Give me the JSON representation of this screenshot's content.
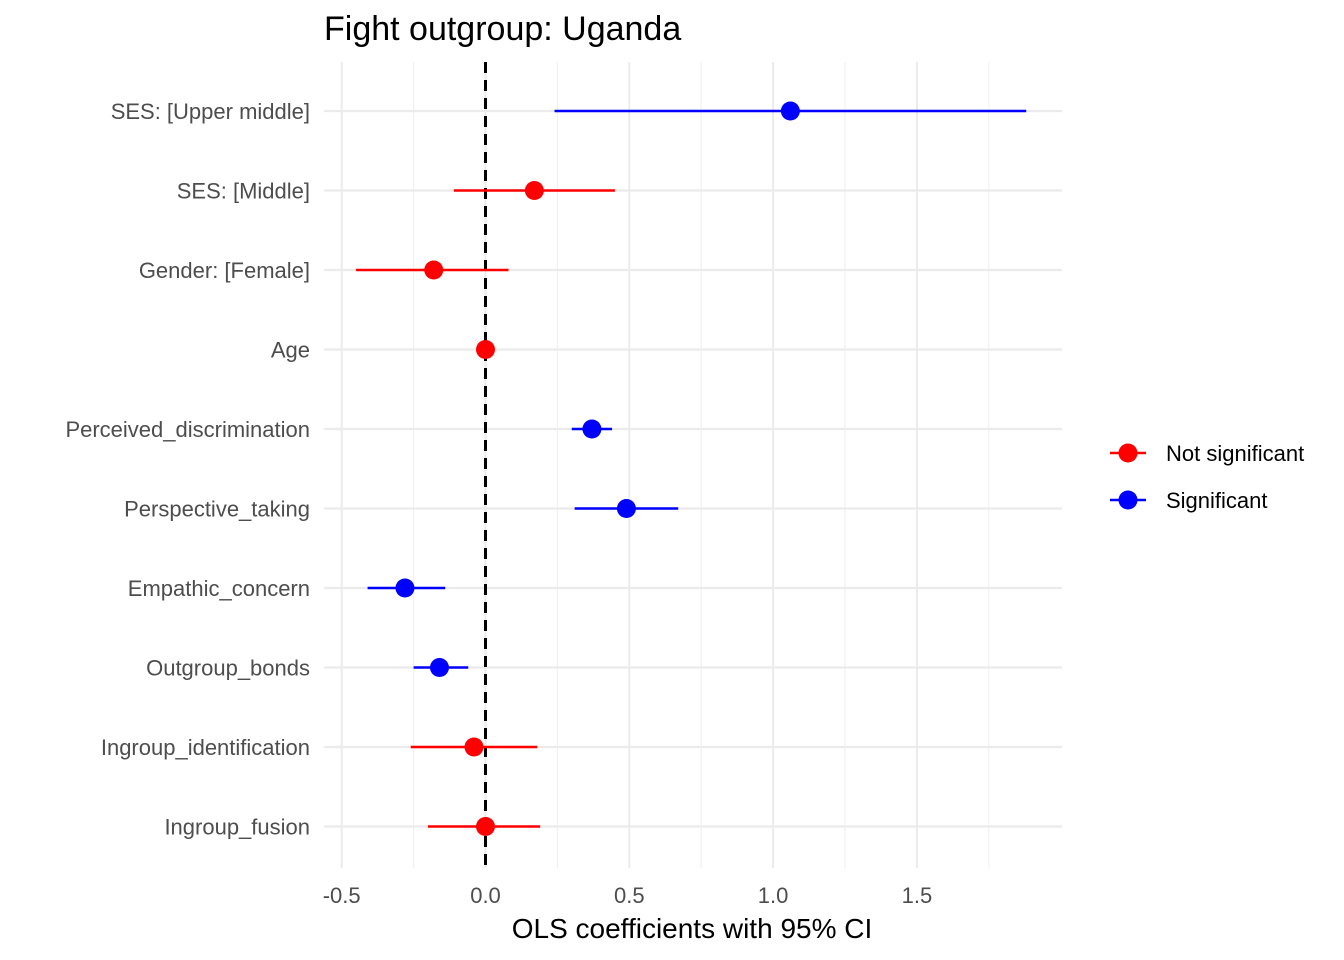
{
  "chart_data": {
    "type": "scatter",
    "title": "Fight outgroup: Uganda",
    "xlabel": "OLS coefficients with 95% CI",
    "ylabel": "",
    "xlim": [
      -0.58,
      1.92
    ],
    "x_ticks": [
      -0.5,
      0.0,
      0.5,
      1.0,
      1.5
    ],
    "x_tick_labels": [
      "-0.5",
      "0.0",
      "0.5",
      "1.0",
      "1.5"
    ],
    "reference_line": 0,
    "grid": true,
    "legend_position": "right",
    "colors": {
      "Not significant": "#ff0000",
      "Significant": "#0000ff"
    },
    "legend": [
      {
        "label": "Not significant",
        "color": "#ff0000"
      },
      {
        "label": "Significant",
        "color": "#0000ff"
      }
    ],
    "points": [
      {
        "term": "SES:  [Upper middle]",
        "estimate": 1.06,
        "low": 0.24,
        "high": 1.88,
        "group": "Significant"
      },
      {
        "term": "SES:  [Middle]",
        "estimate": 0.17,
        "low": -0.11,
        "high": 0.45,
        "group": "Not significant"
      },
      {
        "term": "Gender:  [Female]",
        "estimate": -0.18,
        "low": -0.45,
        "high": 0.08,
        "group": "Not significant"
      },
      {
        "term": "Age",
        "estimate": 0.0,
        "low": -0.01,
        "high": 0.01,
        "group": "Not significant"
      },
      {
        "term": "Perceived_discrimination",
        "estimate": 0.37,
        "low": 0.3,
        "high": 0.44,
        "group": "Significant"
      },
      {
        "term": "Perspective_taking",
        "estimate": 0.49,
        "low": 0.31,
        "high": 0.67,
        "group": "Significant"
      },
      {
        "term": "Empathic_concern",
        "estimate": -0.28,
        "low": -0.41,
        "high": -0.14,
        "group": "Significant"
      },
      {
        "term": "Outgroup_bonds",
        "estimate": -0.16,
        "low": -0.25,
        "high": -0.06,
        "group": "Significant"
      },
      {
        "term": "Ingroup_identification",
        "estimate": -0.04,
        "low": -0.26,
        "high": 0.18,
        "group": "Not significant"
      },
      {
        "term": "Ingroup_fusion",
        "estimate": 0.0,
        "low": -0.2,
        "high": 0.19,
        "group": "Not significant"
      }
    ]
  }
}
